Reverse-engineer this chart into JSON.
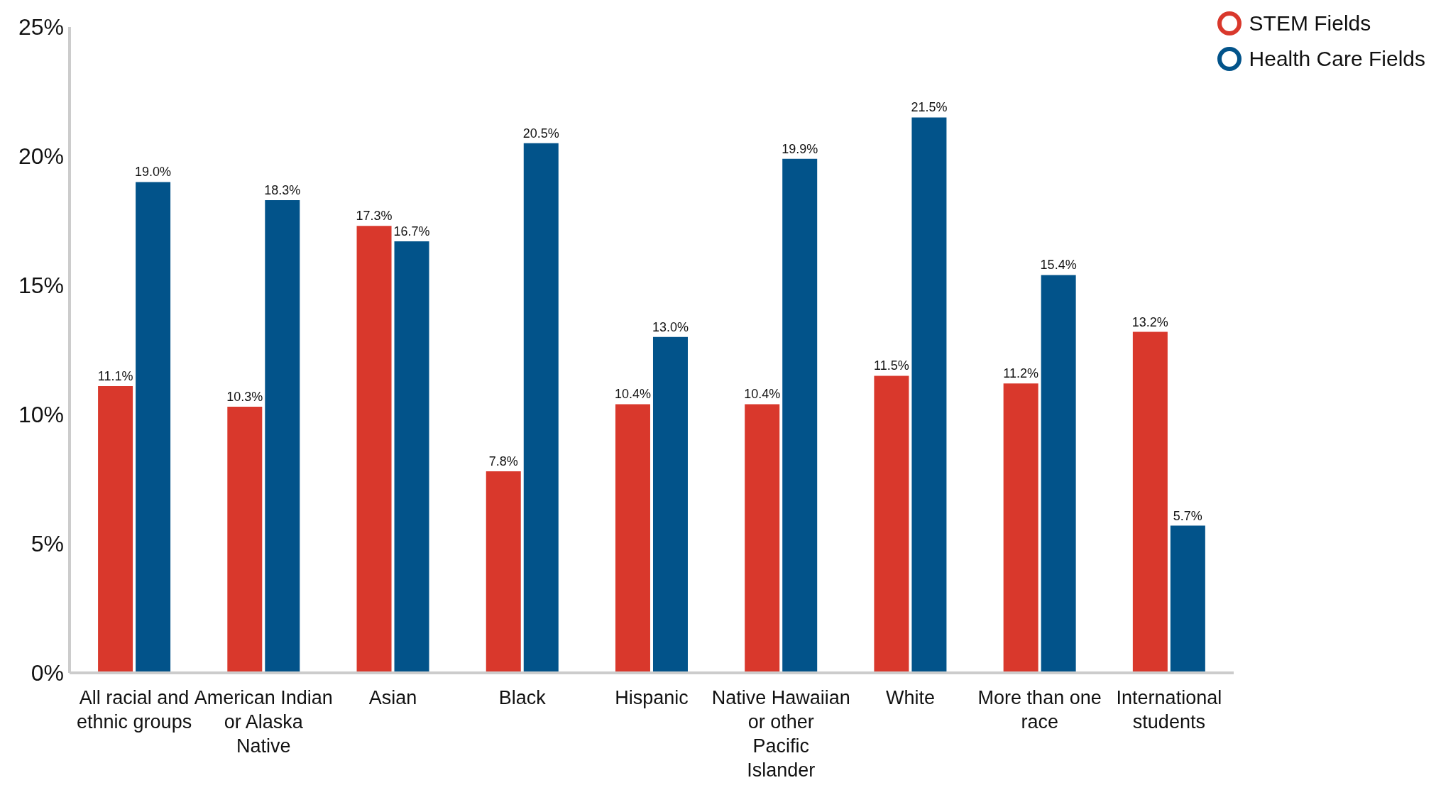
{
  "chart_data": {
    "type": "bar",
    "categories": [
      "All racial and ethnic groups",
      "American Indian or Alaska Native",
      "Asian",
      "Black",
      "Hispanic",
      "Native Hawaiian or other Pacific Islander",
      "White",
      "More than one race",
      "International students"
    ],
    "series": [
      {
        "name": "STEM Fields",
        "color": "#d9382c",
        "values": [
          11.1,
          10.3,
          17.3,
          7.8,
          10.4,
          10.4,
          11.5,
          11.2,
          13.2
        ],
        "value_labels": [
          "11.1%",
          "10.3%",
          "17.3%",
          "7.8%",
          "10.4%",
          "10.4%",
          "11.5%",
          "11.2%",
          "13.2%"
        ]
      },
      {
        "name": "Health Care Fields",
        "color": "#02538a",
        "values": [
          19.0,
          18.3,
          16.7,
          20.5,
          13.0,
          19.9,
          21.5,
          15.4,
          5.7
        ],
        "value_labels": [
          "19.0%",
          "18.3%",
          "16.7%",
          "20.5%",
          "13.0%",
          "19.9%",
          "21.5%",
          "15.4%",
          "5.7%"
        ]
      }
    ],
    "ylim": [
      0,
      25
    ],
    "yticks": [
      {
        "value": 0,
        "label": "0%"
      },
      {
        "value": 5,
        "label": "5%"
      },
      {
        "value": 10,
        "label": "10%"
      },
      {
        "value": 15,
        "label": "15%"
      },
      {
        "value": 20,
        "label": "20%"
      },
      {
        "value": 25,
        "label": "25%"
      }
    ],
    "grid": false,
    "legend": "top right"
  }
}
